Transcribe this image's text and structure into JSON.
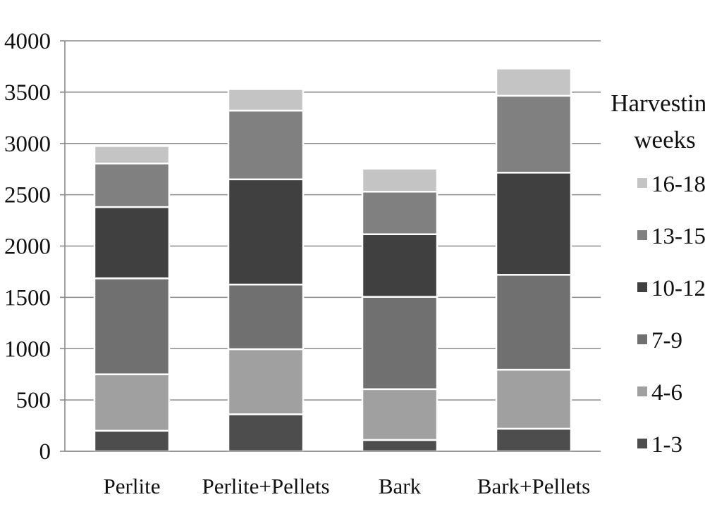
{
  "chart_data": {
    "type": "bar",
    "stacked": true,
    "categories": [
      "Perlite",
      "Perlite+Pellets",
      "Bark",
      "Bark+Pellets"
    ],
    "ylim": [
      0,
      4000
    ],
    "yticks": [
      0,
      500,
      1000,
      1500,
      2000,
      2500,
      3000,
      3500,
      4000
    ],
    "grid": true,
    "legend_position": "right",
    "legend_title": [
      "Harvesting",
      "weeks"
    ],
    "series": [
      {
        "name": "1-3",
        "color": "#4d4d4d",
        "values": [
          200,
          360,
          110,
          220
        ]
      },
      {
        "name": "4-6",
        "color": "#a0a0a0",
        "values": [
          550,
          635,
          495,
          575
        ]
      },
      {
        "name": "7-9",
        "color": "#707070",
        "values": [
          935,
          630,
          900,
          925
        ]
      },
      {
        "name": "10-12",
        "color": "#404040",
        "values": [
          695,
          1025,
          610,
          995
        ]
      },
      {
        "name": "13-15",
        "color": "#808080",
        "values": [
          425,
          670,
          415,
          750
        ]
      },
      {
        "name": "16-18",
        "color": "#c4c4c4",
        "values": [
          170,
          210,
          225,
          265
        ]
      }
    ]
  }
}
